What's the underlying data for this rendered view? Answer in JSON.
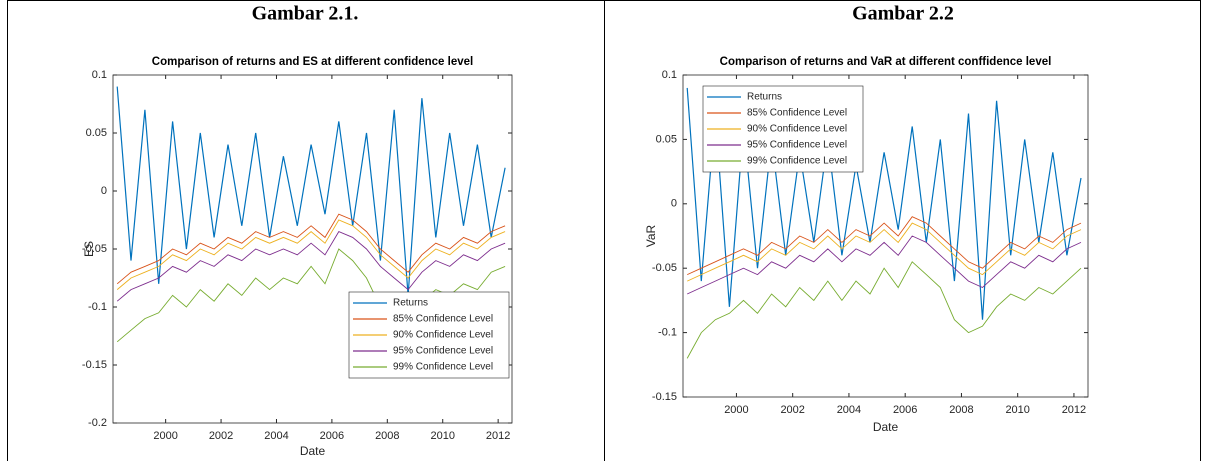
{
  "table": {
    "headers": [
      "Gambar 2.1.",
      "Gambar 2.2"
    ]
  },
  "chart_data": [
    {
      "type": "line",
      "title": "Comparison of returns and ES at different confidence level",
      "x_label": "Date",
      "y_label": "ES",
      "xlim": [
        1998.1,
        2012.5
      ],
      "xticks": [
        2000,
        2002,
        2004,
        2006,
        2008,
        2010,
        2012
      ],
      "ylim": [
        -0.2,
        0.1
      ],
      "yticks": [
        -0.2,
        -0.15,
        -0.1,
        -0.05,
        0,
        0.05,
        0.1
      ],
      "legend": "lower right",
      "x": [
        1998.25,
        1998.75,
        1999.25,
        1999.75,
        2000.25,
        2000.75,
        2001.25,
        2001.75,
        2002.25,
        2002.75,
        2003.25,
        2003.75,
        2004.25,
        2004.75,
        2005.25,
        2005.75,
        2006.25,
        2006.75,
        2007.25,
        2007.75,
        2008.25,
        2008.75,
        2009.25,
        2009.75,
        2010.25,
        2010.75,
        2011.25,
        2011.75,
        2012.25
      ],
      "series": [
        {
          "name": "Returns",
          "color": "#0072bd",
          "values": [
            0.09,
            -0.06,
            0.07,
            -0.08,
            0.06,
            -0.05,
            0.05,
            -0.04,
            0.04,
            -0.03,
            0.05,
            -0.04,
            0.03,
            -0.03,
            0.04,
            -0.02,
            0.06,
            -0.03,
            0.05,
            -0.06,
            0.07,
            -0.09,
            0.08,
            -0.04,
            0.05,
            -0.03,
            0.04,
            -0.04,
            0.02
          ]
        },
        {
          "name": "85% Confidence Level",
          "color": "#d95319",
          "values": [
            -0.08,
            -0.07,
            -0.065,
            -0.06,
            -0.05,
            -0.055,
            -0.045,
            -0.05,
            -0.04,
            -0.045,
            -0.035,
            -0.04,
            -0.035,
            -0.04,
            -0.03,
            -0.04,
            -0.02,
            -0.025,
            -0.035,
            -0.05,
            -0.06,
            -0.07,
            -0.055,
            -0.045,
            -0.05,
            -0.04,
            -0.045,
            -0.035,
            -0.03
          ]
        },
        {
          "name": "90% Confidence Level",
          "color": "#edb120",
          "values": [
            -0.085,
            -0.075,
            -0.07,
            -0.065,
            -0.055,
            -0.06,
            -0.05,
            -0.055,
            -0.045,
            -0.05,
            -0.04,
            -0.045,
            -0.04,
            -0.045,
            -0.035,
            -0.045,
            -0.025,
            -0.03,
            -0.04,
            -0.055,
            -0.065,
            -0.075,
            -0.06,
            -0.05,
            -0.055,
            -0.045,
            -0.05,
            -0.04,
            -0.035
          ]
        },
        {
          "name": "95% Confidence Level",
          "color": "#7e2f8e",
          "values": [
            -0.095,
            -0.085,
            -0.08,
            -0.075,
            -0.065,
            -0.07,
            -0.06,
            -0.065,
            -0.055,
            -0.06,
            -0.05,
            -0.055,
            -0.05,
            -0.055,
            -0.045,
            -0.055,
            -0.035,
            -0.04,
            -0.05,
            -0.065,
            -0.075,
            -0.085,
            -0.07,
            -0.06,
            -0.065,
            -0.055,
            -0.06,
            -0.05,
            -0.045
          ]
        },
        {
          "name": "99% Confidence Level",
          "color": "#77ac30",
          "values": [
            -0.13,
            -0.12,
            -0.11,
            -0.105,
            -0.09,
            -0.1,
            -0.085,
            -0.095,
            -0.08,
            -0.09,
            -0.075,
            -0.085,
            -0.075,
            -0.08,
            -0.065,
            -0.08,
            -0.05,
            -0.06,
            -0.075,
            -0.1,
            -0.11,
            -0.115,
            -0.095,
            -0.085,
            -0.09,
            -0.08,
            -0.085,
            -0.07,
            -0.065
          ]
        }
      ]
    },
    {
      "type": "line",
      "title": "Comparison of returns and VaR at different conffidence level",
      "x_label": "Date",
      "y_label": "VaR",
      "xlim": [
        1998.1,
        2012.5
      ],
      "xticks": [
        2000,
        2002,
        2004,
        2006,
        2008,
        2010,
        2012
      ],
      "ylim": [
        -0.15,
        0.1
      ],
      "yticks": [
        -0.15,
        -0.1,
        -0.05,
        0,
        0.05,
        0.1
      ],
      "legend": "upper left",
      "x": [
        1998.25,
        1998.75,
        1999.25,
        1999.75,
        2000.25,
        2000.75,
        2001.25,
        2001.75,
        2002.25,
        2002.75,
        2003.25,
        2003.75,
        2004.25,
        2004.75,
        2005.25,
        2005.75,
        2006.25,
        2006.75,
        2007.25,
        2007.75,
        2008.25,
        2008.75,
        2009.25,
        2009.75,
        2010.25,
        2010.75,
        2011.25,
        2011.75,
        2012.25
      ],
      "series": [
        {
          "name": "Returns",
          "color": "#0072bd",
          "values": [
            0.09,
            -0.06,
            0.07,
            -0.08,
            0.06,
            -0.05,
            0.05,
            -0.04,
            0.04,
            -0.03,
            0.05,
            -0.04,
            0.03,
            -0.03,
            0.04,
            -0.02,
            0.06,
            -0.03,
            0.05,
            -0.06,
            0.07,
            -0.09,
            0.08,
            -0.04,
            0.05,
            -0.03,
            0.04,
            -0.04,
            0.02
          ]
        },
        {
          "name": "85% Confidence Level",
          "color": "#d95319",
          "values": [
            -0.055,
            -0.05,
            -0.045,
            -0.04,
            -0.035,
            -0.04,
            -0.03,
            -0.035,
            -0.025,
            -0.03,
            -0.02,
            -0.03,
            -0.02,
            -0.025,
            -0.015,
            -0.025,
            -0.01,
            -0.015,
            -0.025,
            -0.035,
            -0.045,
            -0.05,
            -0.04,
            -0.03,
            -0.035,
            -0.025,
            -0.03,
            -0.02,
            -0.015
          ]
        },
        {
          "name": "90% Confidence Level",
          "color": "#edb120",
          "values": [
            -0.06,
            -0.055,
            -0.05,
            -0.045,
            -0.04,
            -0.045,
            -0.035,
            -0.04,
            -0.03,
            -0.035,
            -0.025,
            -0.035,
            -0.025,
            -0.03,
            -0.02,
            -0.03,
            -0.015,
            -0.02,
            -0.03,
            -0.04,
            -0.05,
            -0.055,
            -0.045,
            -0.035,
            -0.04,
            -0.03,
            -0.035,
            -0.025,
            -0.02
          ]
        },
        {
          "name": "95% Confidence Level",
          "color": "#7e2f8e",
          "values": [
            -0.07,
            -0.065,
            -0.06,
            -0.055,
            -0.05,
            -0.055,
            -0.045,
            -0.05,
            -0.04,
            -0.045,
            -0.035,
            -0.045,
            -0.035,
            -0.04,
            -0.03,
            -0.04,
            -0.025,
            -0.03,
            -0.04,
            -0.05,
            -0.06,
            -0.065,
            -0.055,
            -0.045,
            -0.05,
            -0.04,
            -0.045,
            -0.035,
            -0.03
          ]
        },
        {
          "name": "99% Confidence Level",
          "color": "#77ac30",
          "values": [
            -0.12,
            -0.1,
            -0.09,
            -0.085,
            -0.075,
            -0.085,
            -0.07,
            -0.08,
            -0.065,
            -0.075,
            -0.06,
            -0.075,
            -0.06,
            -0.07,
            -0.05,
            -0.065,
            -0.045,
            -0.055,
            -0.065,
            -0.09,
            -0.1,
            -0.095,
            -0.08,
            -0.07,
            -0.075,
            -0.065,
            -0.07,
            -0.06,
            -0.05
          ]
        }
      ]
    }
  ]
}
